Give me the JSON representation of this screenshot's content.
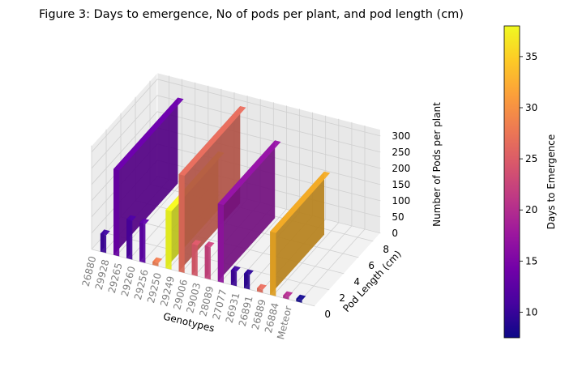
{
  "figure": {
    "title": "Figure 3: Days to emergence, No of pods per plant, and pod length (cm)"
  },
  "chart_data": {
    "type": "bar3d",
    "title": "Figure 3: Days to emergence, No of pods per plant, and pod length (cm)",
    "xlabel": "Genotypes",
    "ylabel": "Pod Length (cm)",
    "zlabel": "Number of Pods per plant",
    "colorbar_label": "Days to Emergence",
    "categories": [
      "Meteor",
      "26884",
      "26889",
      "26891",
      "26931",
      "27077",
      "28089",
      "29003",
      "29006",
      "29249",
      "29250",
      "29256",
      "29260",
      "29265",
      "29928",
      "26880"
    ],
    "x_tick_labels": [
      "Meteor",
      "26884",
      "26889",
      "26891",
      "26931",
      "27077",
      "28089",
      "29003",
      "29006",
      "29249",
      "29250",
      "29256",
      "29260",
      "29265",
      "29928",
      "26880"
    ],
    "y_ticks": [
      "0",
      "2",
      "4",
      "6",
      "8"
    ],
    "z_ticks": [
      "0",
      "50",
      "100",
      "150",
      "200",
      "250",
      "300"
    ],
    "colorbar_ticks": [
      "10",
      "15",
      "20",
      "25",
      "30",
      "35"
    ],
    "ylim": [
      0,
      9
    ],
    "zlim": [
      0,
      320
    ],
    "colorbar_range": [
      7.5,
      38
    ],
    "colormap": "plasma",
    "grid": true,
    "series": [
      {
        "category": "Meteor",
        "pods_per_plant": 8,
        "pod_length_cm": 0.3,
        "days_to_emergence": 8,
        "color": "#150b8c"
      },
      {
        "category": "26884",
        "pods_per_plant": 8,
        "pod_length_cm": 0.3,
        "days_to_emergence": 20,
        "color": "#b02b8e"
      },
      {
        "category": "26889",
        "pods_per_plant": 195,
        "pod_length_cm": 7.2,
        "days_to_emergence": 33,
        "color": "#e9a524"
      },
      {
        "category": "26891",
        "pods_per_plant": 10,
        "pod_length_cm": 0.3,
        "days_to_emergence": 27,
        "color": "#e16b5b"
      },
      {
        "category": "26931",
        "pods_per_plant": 45,
        "pod_length_cm": 0.3,
        "days_to_emergence": 9,
        "color": "#2c0594"
      },
      {
        "category": "27077",
        "pods_per_plant": 45,
        "pod_length_cm": 0.3,
        "days_to_emergence": 10,
        "color": "#3d049b"
      },
      {
        "category": "28089",
        "pods_per_plant": 240,
        "pod_length_cm": 7.6,
        "days_to_emergence": 18,
        "color": "#9213a2"
      },
      {
        "category": "29003",
        "pods_per_plant": 100,
        "pod_length_cm": 0.3,
        "days_to_emergence": 22,
        "color": "#c8417c"
      },
      {
        "category": "29006",
        "pods_per_plant": 95,
        "pod_length_cm": 0.3,
        "days_to_emergence": 25,
        "color": "#d9596a"
      },
      {
        "category": "29249",
        "pods_per_plant": 300,
        "pod_length_cm": 8.2,
        "days_to_emergence": 27,
        "color": "#e16b5b"
      },
      {
        "category": "29250",
        "pods_per_plant": 180,
        "pod_length_cm": 7.0,
        "days_to_emergence": 38,
        "color": "#eff821"
      },
      {
        "category": "29256",
        "pods_per_plant": 10,
        "pod_length_cm": 0.3,
        "days_to_emergence": 29,
        "color": "#ea7a4f"
      },
      {
        "category": "29260",
        "pods_per_plant": 120,
        "pod_length_cm": 0.3,
        "days_to_emergence": 12,
        "color": "#5d01a6"
      },
      {
        "category": "29265",
        "pods_per_plant": 120,
        "pod_length_cm": 0.3,
        "days_to_emergence": 11,
        "color": "#4c02a1"
      },
      {
        "category": "29928",
        "pods_per_plant": 265,
        "pod_length_cm": 8.6,
        "days_to_emergence": 13,
        "color": "#6a00a8"
      },
      {
        "category": "26880",
        "pods_per_plant": 55,
        "pod_length_cm": 0.3,
        "days_to_emergence": 10,
        "color": "#3d049b"
      }
    ]
  }
}
